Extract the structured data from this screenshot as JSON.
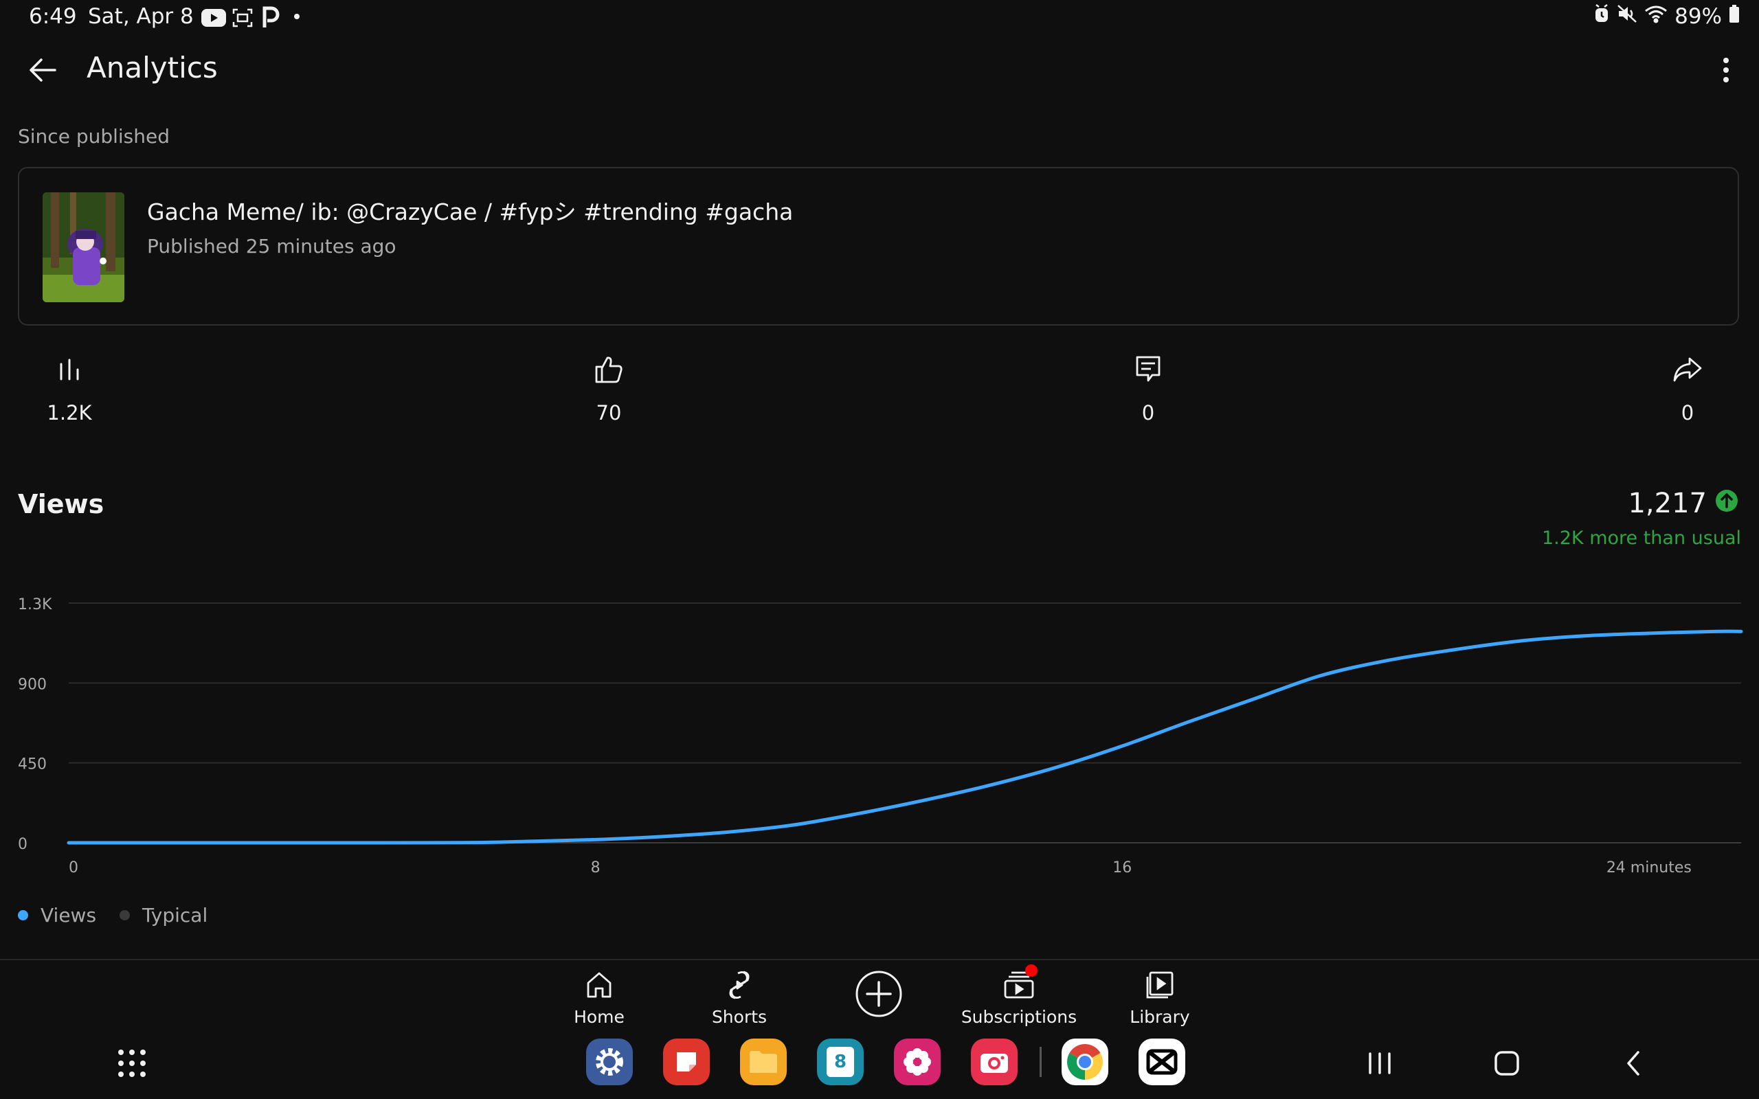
{
  "status_bar": {
    "time": "6:49",
    "date": "Sat, Apr 8",
    "battery": "89%"
  },
  "header": {
    "title": "Analytics"
  },
  "section_label": "Since published",
  "video": {
    "title": "Gacha Meme/ ib: @CrazyCae / #fypシ #trending #gacha",
    "published": "Published 25 minutes ago"
  },
  "stats": {
    "views": "1.2K",
    "likes": "70",
    "comments": "0",
    "shares": "0"
  },
  "views_section": {
    "heading": "Views",
    "total": "1,217",
    "comparison": "1.2K more than usual"
  },
  "chart_data": {
    "type": "line",
    "title": "",
    "xlabel": "",
    "ylabel": "",
    "x_ticks": [
      "0",
      "8",
      "16",
      "24 minutes"
    ],
    "x_tick_values": [
      0,
      8,
      16,
      24
    ],
    "y_ticks": [
      "0",
      "450",
      "900",
      "1.3K"
    ],
    "y_tick_values": [
      0,
      450,
      900,
      1350
    ],
    "xlim": [
      0,
      25.4
    ],
    "ylim": [
      0,
      1350
    ],
    "grid": true,
    "series": [
      {
        "name": "Views",
        "color": "#3ea6ff",
        "x": [
          0,
          2,
          4,
          6,
          7,
          8,
          9,
          10,
          11,
          12,
          13,
          14,
          15,
          16,
          17,
          18,
          19,
          20,
          21,
          22,
          23,
          24,
          25,
          25.4
        ],
        "y": [
          0,
          0,
          0,
          1,
          8,
          18,
          35,
          60,
          100,
          165,
          240,
          325,
          425,
          545,
          680,
          810,
          940,
          1025,
          1085,
          1135,
          1165,
          1180,
          1190,
          1190
        ]
      }
    ]
  },
  "legend": {
    "views": "Views",
    "typical": "Typical",
    "views_color": "#3ea6ff",
    "typical_color": "#3a3a3a"
  },
  "bottom_nav": {
    "home": "Home",
    "shorts": "Shorts",
    "subscriptions": "Subscriptions",
    "library": "Library"
  },
  "taskbar": {
    "calendar_day": "8"
  }
}
